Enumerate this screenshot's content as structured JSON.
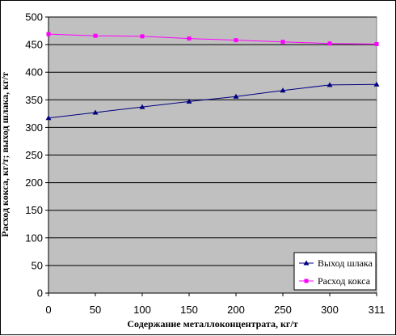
{
  "chart_data": {
    "type": "line",
    "x": [
      0,
      50,
      100,
      150,
      200,
      250,
      300,
      311
    ],
    "categories": [
      "0",
      "50",
      "100",
      "150",
      "200",
      "250",
      "300",
      "311"
    ],
    "xlabel": "Содержание металлоконцентрата, кг/т",
    "ylabel": "Расход кокса, кг/т; выход шлака, кг/т",
    "ylim": [
      0,
      500
    ],
    "yticks": [
      0,
      50,
      100,
      150,
      200,
      250,
      300,
      350,
      400,
      450,
      500
    ],
    "grid": true,
    "legend_position": "bottom-right",
    "series": [
      {
        "name": "Выход шлака",
        "color": "#000080",
        "marker": "triangle",
        "values": [
          317,
          327,
          337,
          347,
          356,
          367,
          377,
          378
        ]
      },
      {
        "name": "Расход кокса",
        "color": "#ff00ff",
        "marker": "square",
        "values": [
          469,
          466,
          465,
          461,
          458,
          455,
          452,
          451
        ]
      }
    ],
    "plot_background": "#c0c0c0"
  }
}
